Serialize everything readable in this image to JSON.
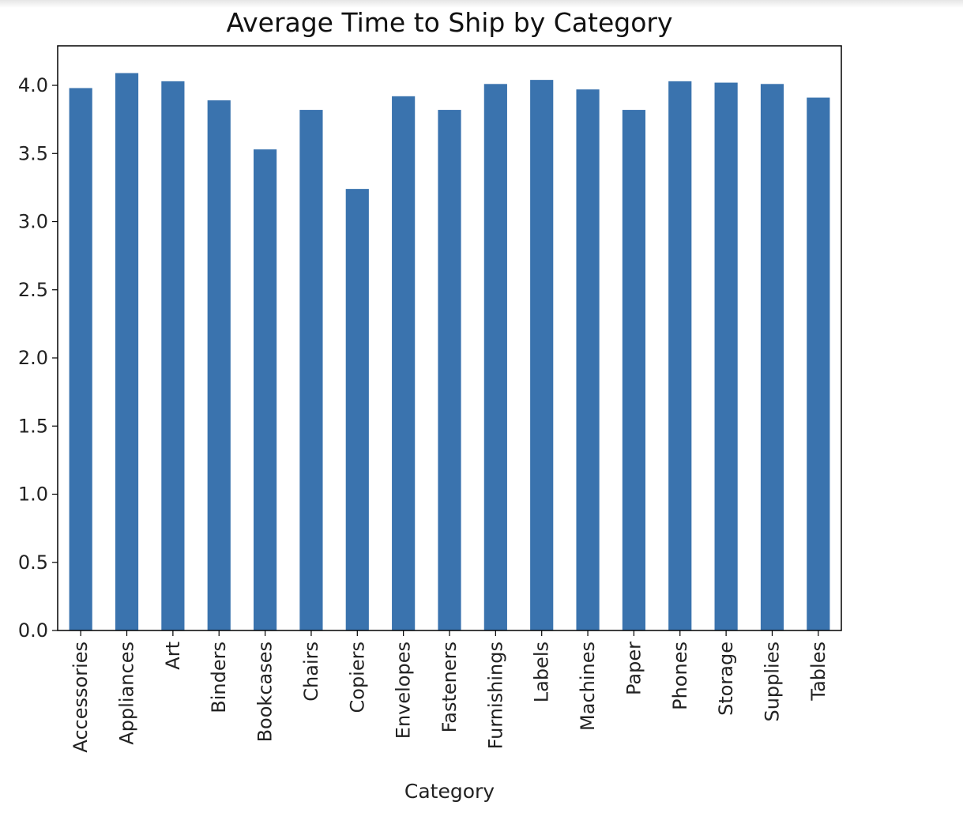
{
  "chart_data": {
    "type": "bar",
    "title": "Average Time to Ship by Category",
    "xlabel": "Category",
    "ylabel": "",
    "categories": [
      "Accessories",
      "Appliances",
      "Art",
      "Binders",
      "Bookcases",
      "Chairs",
      "Copiers",
      "Envelopes",
      "Fasteners",
      "Furnishings",
      "Labels",
      "Machines",
      "Paper",
      "Phones",
      "Storage",
      "Supplies",
      "Tables"
    ],
    "values": [
      3.98,
      4.09,
      4.03,
      3.89,
      3.53,
      3.82,
      3.24,
      3.92,
      3.82,
      4.01,
      4.04,
      3.97,
      3.82,
      4.03,
      4.02,
      4.01,
      3.91
    ],
    "ylim": [
      0,
      4.29
    ],
    "yticks": [
      0.0,
      0.5,
      1.0,
      1.5,
      2.0,
      2.5,
      3.0,
      3.5,
      4.0
    ],
    "ytick_labels": [
      "0.0",
      "0.5",
      "1.0",
      "1.5",
      "2.0",
      "2.5",
      "3.0",
      "3.5",
      "4.0"
    ],
    "bar_color": "#3a73ae",
    "grid": false,
    "legend": "none"
  }
}
